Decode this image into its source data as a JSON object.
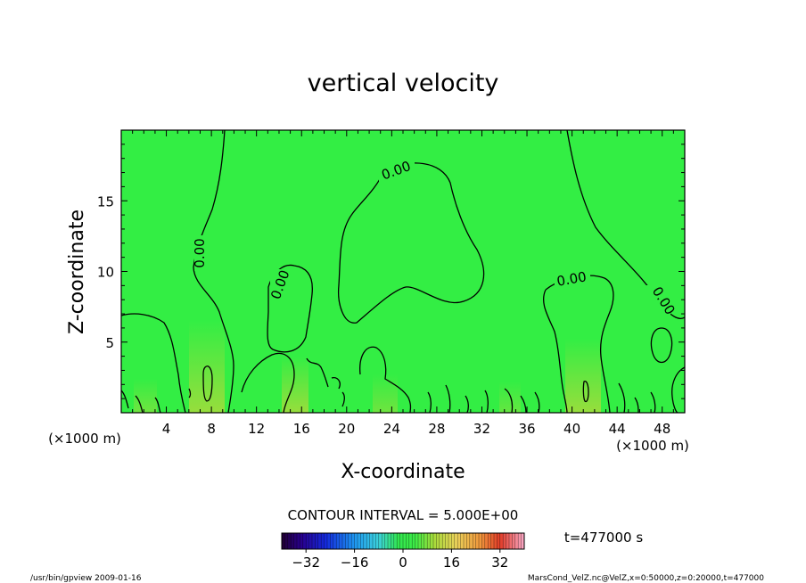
{
  "chart_data": {
    "type": "heatmap",
    "title": "vertical velocity",
    "xlabel": "X-coordinate",
    "ylabel": "Z-coordinate",
    "x_unit": "(×1000 m)",
    "x_unit_right": "(×1000 m)",
    "xlim": [
      0,
      50
    ],
    "ylim": [
      0,
      20
    ],
    "x_ticks": [
      4,
      8,
      12,
      16,
      20,
      24,
      28,
      32,
      36,
      40,
      44,
      48
    ],
    "y_ticks": [
      5,
      10,
      15
    ],
    "contour_label": "0.00",
    "contour_interval_text": "CONTOUR INTERVAL = 5.000E+00",
    "time_text": "t=477000 s",
    "colorbar_ticks": [
      -32,
      -16,
      0,
      16,
      32
    ],
    "colorbar_range": [
      -40,
      40
    ],
    "field_dominant_value": 0,
    "colors": {
      "field": "#33ee44",
      "contour": "#000000",
      "plume": "#bbd833"
    }
  },
  "footer": {
    "left": "/usr/bin/gpview   2009-01-16",
    "right": "MarsCond_VelZ.nc@VelZ,x=0:50000,z=0:20000,t=477000"
  }
}
